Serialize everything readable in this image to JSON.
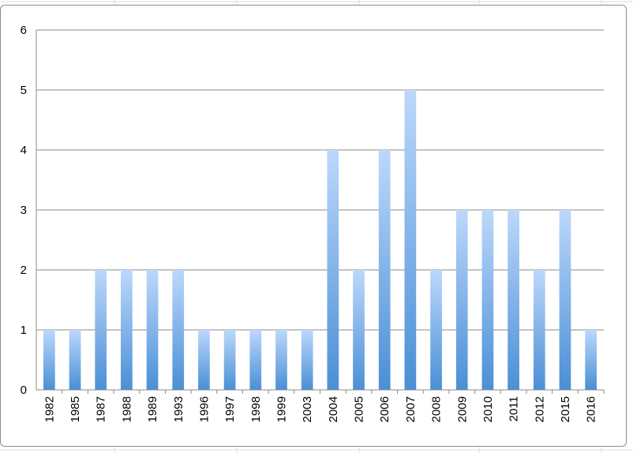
{
  "chart_data": {
    "type": "bar",
    "title": "",
    "xlabel": "",
    "ylabel": "",
    "categories": [
      "1982",
      "1985",
      "1987",
      "1988",
      "1989",
      "1993",
      "1996",
      "1997",
      "1998",
      "1999",
      "2003",
      "2004",
      "2005",
      "2006",
      "2007",
      "2008",
      "2009",
      "2010",
      "2011",
      "2012",
      "2015",
      "2016"
    ],
    "values": [
      1,
      1,
      2,
      2,
      2,
      2,
      1,
      1,
      1,
      1,
      1,
      4,
      2,
      4,
      5,
      2,
      3,
      3,
      3,
      2,
      3,
      1
    ],
    "ylim": [
      0,
      6
    ],
    "yticks": [
      "0",
      "1",
      "2",
      "3",
      "4",
      "5",
      "6"
    ],
    "grid": true,
    "legend": "none",
    "colors": {
      "bar_top": "#bcd8fb",
      "bar_bottom": "#4a8fd6",
      "gridline": "#8a8a8a",
      "axis": "#8a8a8a"
    }
  }
}
